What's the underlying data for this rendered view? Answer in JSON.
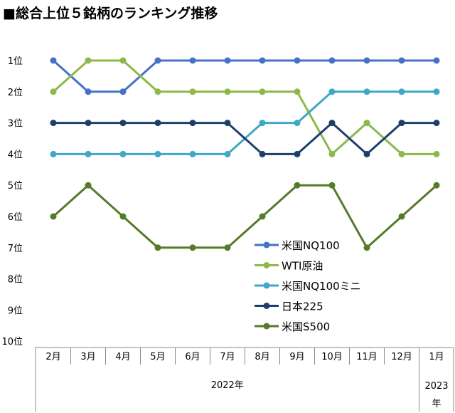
{
  "chart_data": {
    "type": "line",
    "title": "■総合上位５銘柄のランキング推移",
    "categories": [
      "2月",
      "3月",
      "4月",
      "5月",
      "6月",
      "7月",
      "8月",
      "9月",
      "10月",
      "11月",
      "12月",
      "1月"
    ],
    "year_groups": [
      {
        "label": "2022年",
        "span": 11
      },
      {
        "label": "2023年",
        "span": 1
      }
    ],
    "y_ticks": [
      "1位",
      "2位",
      "3位",
      "4位",
      "5位",
      "6位",
      "7位",
      "8位",
      "9位",
      "10位"
    ],
    "ylim": [
      1,
      10
    ],
    "y_inverted": true,
    "grid": false,
    "legend_position": "center-right",
    "series": [
      {
        "name": "米国NQ100",
        "color": "#4472C4",
        "values": [
          1,
          2,
          2,
          1,
          1,
          1,
          1,
          1,
          1,
          1,
          1,
          1
        ]
      },
      {
        "name": "WTI原油",
        "color": "#8DB84A",
        "values": [
          2,
          1,
          1,
          2,
          2,
          2,
          2,
          2,
          4,
          3,
          4,
          4
        ]
      },
      {
        "name": "米国NQ100ミニ",
        "color": "#3FA7C8",
        "values": [
          4,
          4,
          4,
          4,
          4,
          4,
          3,
          3,
          2,
          2,
          2,
          2
        ]
      },
      {
        "name": "日本225",
        "color": "#1F3F6B",
        "values": [
          3,
          3,
          3,
          3,
          3,
          3,
          4,
          4,
          3,
          4,
          3,
          3
        ]
      },
      {
        "name": "米国S500",
        "color": "#557A2A",
        "values": [
          6,
          5,
          6,
          7,
          7,
          7,
          6,
          5,
          5,
          7,
          6,
          5
        ]
      }
    ]
  }
}
